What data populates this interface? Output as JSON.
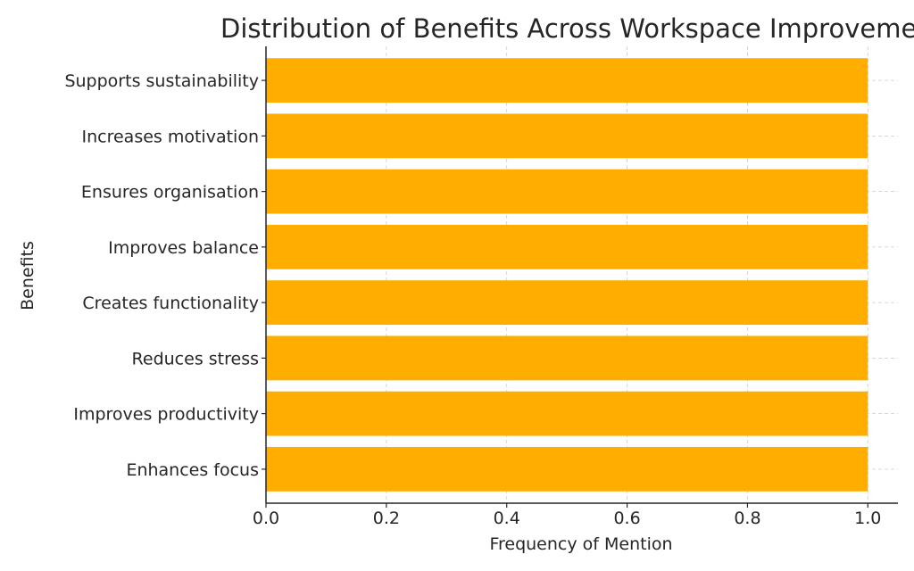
{
  "chart_data": {
    "type": "bar",
    "orientation": "horizontal",
    "title": "Distribution of Benefits Across Workspace Improvements",
    "xlabel": "Frequency of Mention",
    "ylabel": "Benefits",
    "categories": [
      "Enhances focus",
      "Improves productivity",
      "Reduces stress",
      "Creates functionality",
      "Improves balance",
      "Ensures organisation",
      "Increases motivation",
      "Supports sustainability"
    ],
    "values": [
      1,
      1,
      1,
      1,
      1,
      1,
      1,
      1
    ],
    "xlim": [
      0,
      1.05
    ],
    "xticks": [
      "0.0",
      "0.2",
      "0.4",
      "0.6",
      "0.8",
      "1.0"
    ],
    "grid": true,
    "legend": "none",
    "colors": {
      "bar": "#ffae00",
      "grid": "#cccccc",
      "axis": "#262626"
    }
  }
}
